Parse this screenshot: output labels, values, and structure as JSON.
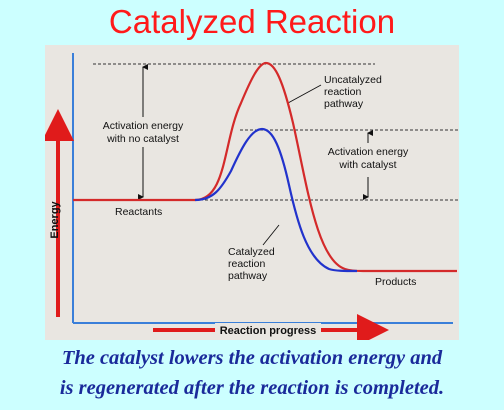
{
  "title": "Catalyzed Reaction",
  "caption": {
    "line1": "The catalyst lowers the activation energy and",
    "line2": "is regenerated after the reaction is completed."
  },
  "diagram": {
    "y_axis_label": "Energy",
    "x_axis_label": "Reaction progress",
    "labels": {
      "reactants": "Reactants",
      "products": "Products",
      "uncatalyzed_1": "Uncatalyzed",
      "uncatalyzed_2": "reaction",
      "uncatalyzed_3": "pathway",
      "catalyzed_1": "Catalyzed",
      "catalyzed_2": "reaction",
      "catalyzed_3": "pathway",
      "ea_no_cat_1": "Activation energy",
      "ea_no_cat_2": "with no catalyst",
      "ea_cat_1": "Activation energy",
      "ea_cat_2": "with catalyst"
    },
    "colors": {
      "uncatalyzed_curve": "#d42a2a",
      "catalyzed_curve": "#2233cc",
      "axes": "#3a7fd9",
      "arrow": "#e01b1b"
    }
  }
}
